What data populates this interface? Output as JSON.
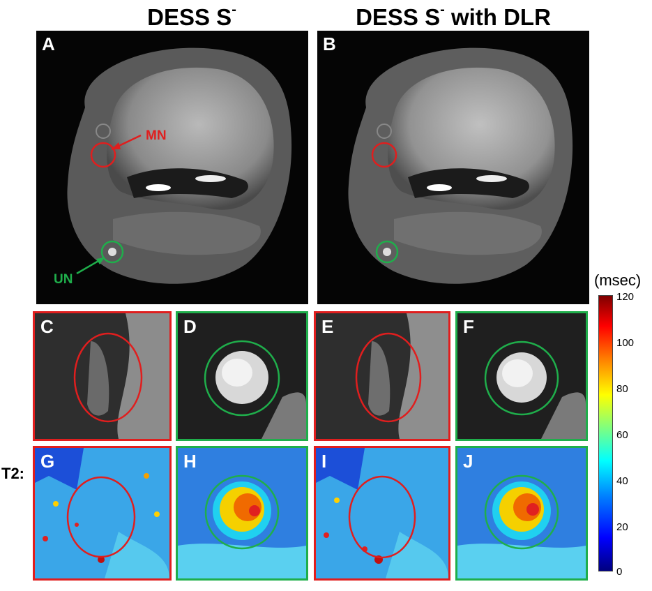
{
  "headings": {
    "left": {
      "text": "DESS S",
      "sup": "-"
    },
    "right": {
      "text": "DESS S",
      "sup": "-",
      "suffix": " with DLR"
    }
  },
  "panels": {
    "A": "A",
    "B": "B",
    "C": "C",
    "D": "D",
    "E": "E",
    "F": "F",
    "G": "G",
    "H": "H",
    "I": "I",
    "J": "J"
  },
  "annotations": {
    "median_nerve": "MN",
    "ulnar_nerve": "UN"
  },
  "row_label": "T2:",
  "colorbar": {
    "unit": "(msec)",
    "ticks": [
      "120",
      "100",
      "80",
      "60",
      "40",
      "20",
      "0"
    ]
  },
  "colors": {
    "median": "#e01e1e",
    "ulnar": "#1fae4b"
  }
}
